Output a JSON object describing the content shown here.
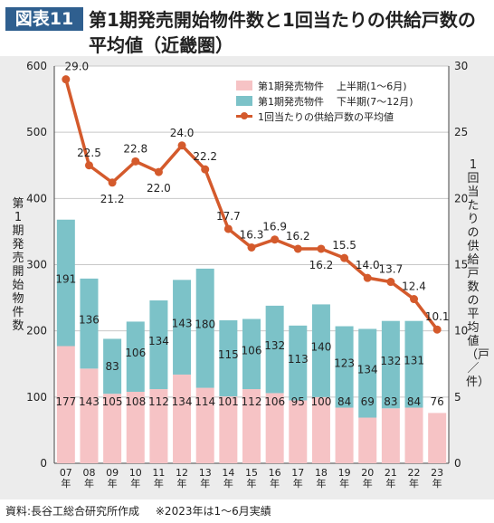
{
  "header": {
    "badge": "図表11",
    "title_line1": "第1期発売開始物件数と1回当たりの供給戸数の",
    "title_line2": "平均値（近畿圏）"
  },
  "footer": {
    "source": "資料:長谷工総合研究所作成",
    "note": "※2023年は1～6月実績"
  },
  "chart_data": {
    "type": "bar",
    "stacked": true,
    "categories": [
      "07年",
      "08年",
      "09年",
      "10年",
      "11年",
      "12年",
      "13年",
      "14年",
      "15年",
      "16年",
      "17年",
      "18年",
      "19年",
      "20年",
      "21年",
      "22年",
      "23年"
    ],
    "series": [
      {
        "name": "第1期発売物件",
        "period": "上半期(1～6月)",
        "color": "#f6c3c5",
        "values": [
          177,
          143,
          105,
          108,
          112,
          134,
          114,
          101,
          112,
          106,
          95,
          100,
          84,
          69,
          83,
          84,
          76
        ]
      },
      {
        "name": "第1期発売物件",
        "period": "下半期(7～12月)",
        "color": "#7cc2c8",
        "values": [
          191,
          136,
          83,
          106,
          134,
          143,
          180,
          115,
          106,
          132,
          113,
          140,
          123,
          134,
          132,
          131,
          null
        ]
      },
      {
        "name": "1回当たりの供給戸数の平均値",
        "type": "line",
        "axis": "right",
        "color": "#d45a2c",
        "values": [
          29.0,
          22.5,
          21.2,
          22.8,
          22.0,
          24.0,
          22.2,
          17.7,
          16.3,
          16.9,
          16.2,
          16.2,
          15.5,
          14.0,
          13.7,
          12.4,
          10.1
        ]
      }
    ],
    "ylabel_left": "第1期発売開始物件数",
    "ylabel_right": "1回当たりの供給戸数の平均値（戸／件）",
    "ylim_left": [
      0,
      600
    ],
    "yticks_left": [
      0,
      100,
      200,
      300,
      400,
      500,
      600
    ],
    "ylim_right": [
      0,
      30
    ],
    "yticks_right": [
      0,
      5,
      10,
      15,
      20,
      25,
      30
    ],
    "grid": true,
    "legend_position": "top-right"
  }
}
